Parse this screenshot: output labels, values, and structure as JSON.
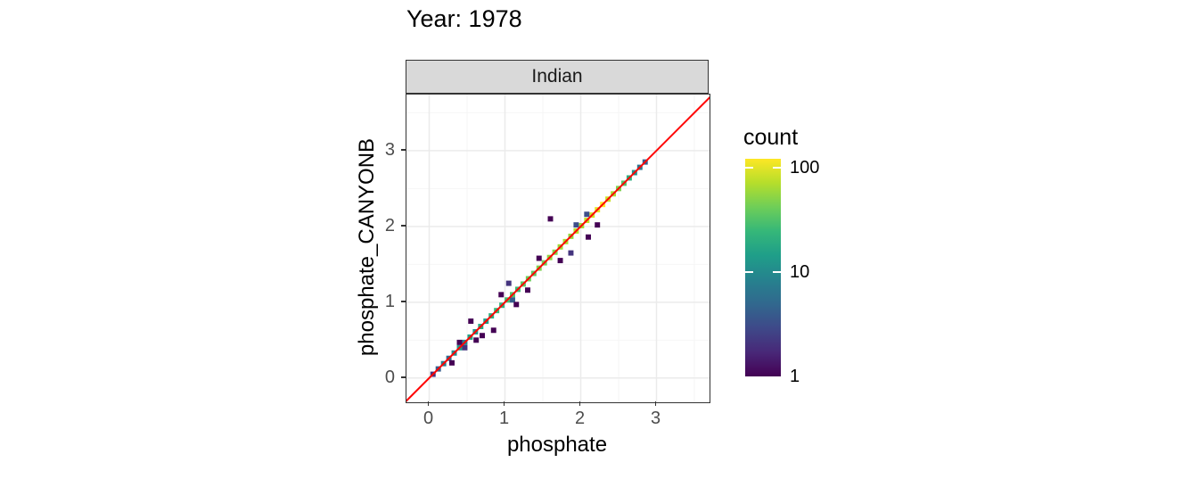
{
  "title": "Year: 1978",
  "facet_label": "Indian",
  "legend": {
    "title": "count",
    "ticks": [
      {
        "label": "100",
        "value": 100
      },
      {
        "label": "10",
        "value": 10
      },
      {
        "label": "1",
        "value": 1
      }
    ],
    "viridis_colors": [
      "#440154",
      "#482878",
      "#3e4989",
      "#31688e",
      "#26828e",
      "#1f9e89",
      "#35b779",
      "#6ece58",
      "#b5de2b",
      "#fde725"
    ]
  },
  "colors": {
    "identity_line": "#ff0000",
    "strip_bg": "#d9d9d9",
    "panel_border": "#333333",
    "grid_major": "#ebebeb",
    "grid_minor": "#f6f6f6",
    "tick_label": "#4d4d4d"
  },
  "chart_data": {
    "type": "scatter",
    "subtype": "binned-2d-viridis",
    "title": "Year: 1978",
    "facet": "Indian",
    "xlabel": "phosphate",
    "ylabel": "phosphate_CANYONB",
    "xlim": [
      -0.3,
      3.7
    ],
    "ylim": [
      -0.32,
      3.74
    ],
    "xticks": [
      0,
      1,
      2,
      3
    ],
    "yticks": [
      0,
      1,
      2,
      3
    ],
    "grid_minor_breaks": [
      0.5,
      1.5,
      2.5,
      3.5
    ],
    "fill_scale": {
      "name": "count",
      "type": "log10",
      "range": [
        1,
        100
      ],
      "palette": "viridis"
    },
    "identity_line": {
      "slope": 1,
      "intercept": 0,
      "color": "#ff0000"
    },
    "bin_size": 0.07,
    "points": [
      [
        0.05,
        0.05,
        2
      ],
      [
        0.12,
        0.12,
        4
      ],
      [
        0.19,
        0.19,
        7
      ],
      [
        0.26,
        0.26,
        5
      ],
      [
        0.33,
        0.33,
        9
      ],
      [
        0.4,
        0.4,
        12
      ],
      [
        0.47,
        0.47,
        8
      ],
      [
        0.54,
        0.54,
        14
      ],
      [
        0.61,
        0.61,
        11
      ],
      [
        0.68,
        0.68,
        16
      ],
      [
        0.75,
        0.75,
        13
      ],
      [
        0.82,
        0.82,
        18
      ],
      [
        0.89,
        0.89,
        22
      ],
      [
        0.96,
        0.96,
        19
      ],
      [
        1.03,
        1.03,
        25
      ],
      [
        1.1,
        1.1,
        28
      ],
      [
        1.17,
        1.17,
        23
      ],
      [
        1.24,
        1.24,
        30
      ],
      [
        1.31,
        1.31,
        35
      ],
      [
        1.38,
        1.38,
        31
      ],
      [
        1.45,
        1.45,
        40
      ],
      [
        1.52,
        1.52,
        37
      ],
      [
        1.59,
        1.59,
        45
      ],
      [
        1.66,
        1.66,
        42
      ],
      [
        1.73,
        1.73,
        50
      ],
      [
        1.8,
        1.8,
        55
      ],
      [
        1.87,
        1.87,
        47
      ],
      [
        1.94,
        1.94,
        60
      ],
      [
        2.01,
        2.01,
        52
      ],
      [
        2.08,
        2.08,
        65
      ],
      [
        2.15,
        2.15,
        72
      ],
      [
        2.22,
        2.22,
        85
      ],
      [
        2.29,
        2.29,
        100
      ],
      [
        2.36,
        2.36,
        70
      ],
      [
        2.43,
        2.43,
        55
      ],
      [
        2.5,
        2.5,
        40
      ],
      [
        2.57,
        2.57,
        28
      ],
      [
        2.64,
        2.64,
        18
      ],
      [
        2.71,
        2.71,
        10
      ],
      [
        2.78,
        2.78,
        6
      ],
      [
        2.85,
        2.85,
        4
      ],
      [
        0.3,
        0.2,
        1
      ],
      [
        0.4,
        0.47,
        1
      ],
      [
        0.47,
        0.4,
        2
      ],
      [
        0.55,
        0.75,
        1
      ],
      [
        0.62,
        0.5,
        1
      ],
      [
        0.7,
        0.56,
        1
      ],
      [
        0.85,
        0.63,
        1
      ],
      [
        0.95,
        1.1,
        1
      ],
      [
        1.05,
        1.25,
        2
      ],
      [
        1.1,
        1.03,
        4
      ],
      [
        1.15,
        0.97,
        1
      ],
      [
        1.3,
        1.16,
        1
      ],
      [
        1.45,
        1.58,
        1
      ],
      [
        1.6,
        2.1,
        1
      ],
      [
        1.73,
        1.55,
        1
      ],
      [
        1.87,
        1.65,
        2
      ],
      [
        1.94,
        2.02,
        3
      ],
      [
        2.08,
        2.16,
        3
      ],
      [
        2.1,
        1.86,
        1
      ],
      [
        2.22,
        2.02,
        1
      ]
    ]
  }
}
